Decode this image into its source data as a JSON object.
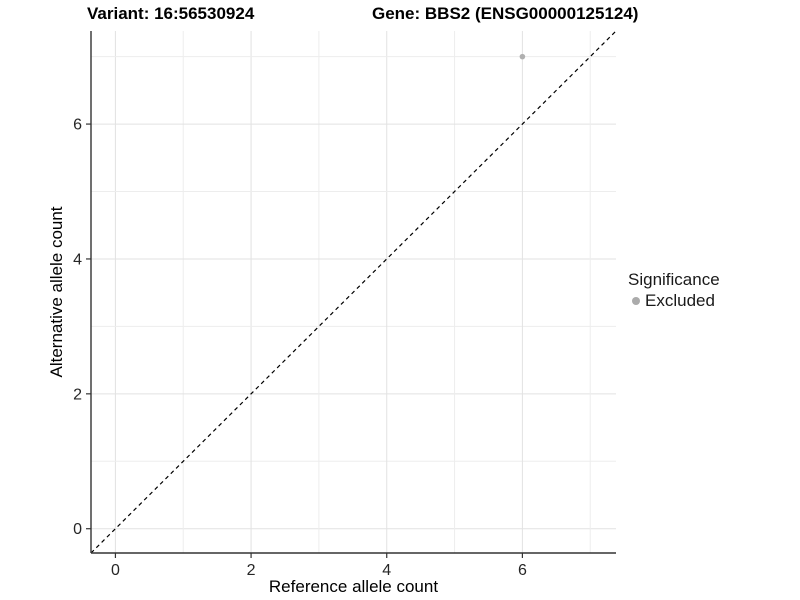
{
  "chart_data": {
    "type": "scatter",
    "title_left": "Variant: 16:56530924",
    "title_right": "Gene: BBS2 (ENSG00000125124)",
    "xlabel": "Reference allele count",
    "ylabel": "Alternative allele count",
    "x_ticks": [
      0,
      2,
      4,
      6
    ],
    "y_ticks": [
      0,
      2,
      4,
      6
    ],
    "xlim": [
      -0.36,
      7.38
    ],
    "ylim": [
      -0.36,
      7.38
    ],
    "grid_lines_at": [
      0,
      1,
      2,
      3,
      4,
      5,
      6,
      7
    ],
    "grid": "on",
    "points": [
      {
        "x": 6,
        "y": 7,
        "series": "Excluded"
      }
    ],
    "reference_line": {
      "type": "abline",
      "intercept": 0,
      "slope": 1,
      "style": "dashed",
      "color": "#000000"
    },
    "legend": {
      "title": "Significance",
      "position": "right",
      "entries": [
        {
          "label": "Excluded",
          "color": "#ababab",
          "marker": "circle"
        }
      ]
    },
    "colors": {
      "point": "#b0b0b0",
      "grid_major": "#e2e2e2",
      "grid_minor": "#ededed",
      "axis_line": "#333333",
      "tick_text": "#262626",
      "title_text": "#000000",
      "background": "#ffffff"
    }
  }
}
